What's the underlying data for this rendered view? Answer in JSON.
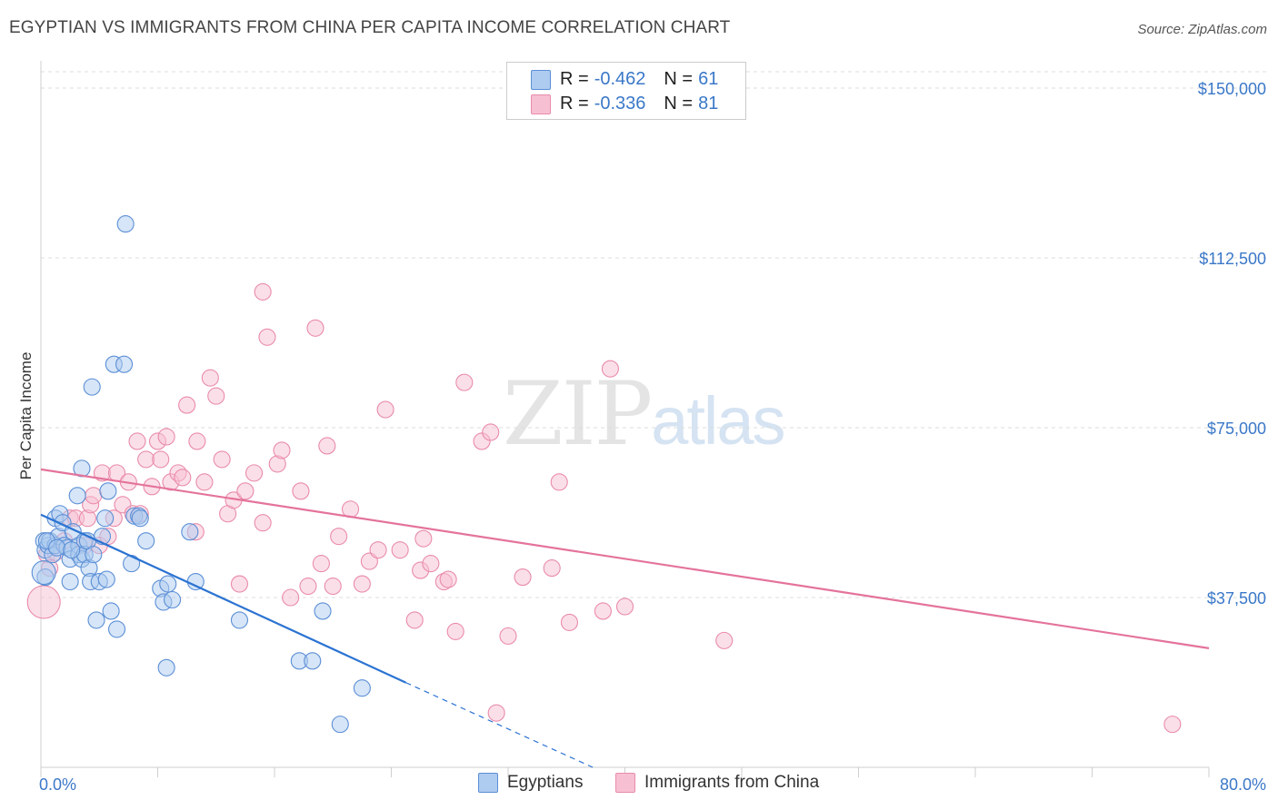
{
  "header": {
    "title": "EGYPTIAN VS IMMIGRANTS FROM CHINA PER CAPITA INCOME CORRELATION CHART",
    "source": "Source: ZipAtlas.com"
  },
  "watermark": {
    "zip": "ZIP",
    "atlas": "atlas"
  },
  "legend": {
    "rows": [
      {
        "r_label": "R =",
        "r_value": "-0.462",
        "n_label": "N =",
        "n_value": "61"
      },
      {
        "r_label": "R =",
        "r_value": "-0.336",
        "n_label": "N =",
        "n_value": "81"
      }
    ]
  },
  "bottom_legend": {
    "egyptians": "Egyptians",
    "china": "Immigrants from China"
  },
  "colors": {
    "blue_fill": "#aecbf0",
    "blue_stroke": "#5b8fd6",
    "blue_line": "#2b73d2",
    "pink_fill": "#f7c0d2",
    "pink_stroke": "#e98bab",
    "pink_line": "#e4739b",
    "tick": "#3b78c8"
  },
  "chart_data": {
    "type": "scatter",
    "title": "EGYPTIAN VS IMMIGRANTS FROM CHINA PER CAPITA INCOME CORRELATION CHART",
    "xlabel": "",
    "ylabel": "Per Capita Income",
    "xlim": [
      0,
      80
    ],
    "ylim": [
      0,
      150000
    ],
    "x_tick_labels": [
      "0.0%",
      "80.0%"
    ],
    "y_ticks": [
      37500,
      75000,
      112500,
      150000
    ],
    "y_tick_labels": [
      "$37,500",
      "$75,000",
      "$112,500",
      "$150,000"
    ],
    "grid": true,
    "series": [
      {
        "name": "Egyptians",
        "R": -0.462,
        "N": 61,
        "trend": {
          "x0": 0,
          "y0": 55800,
          "x1": 25,
          "y1": 18700,
          "dashed_to_x": 37.8,
          "dashed_to_y": 0
        },
        "points": [
          [
            0.2,
            50000
          ],
          [
            0.3,
            48000
          ],
          [
            0.3,
            42000
          ],
          [
            0.5,
            49000
          ],
          [
            0.6,
            50000
          ],
          [
            0.8,
            47000
          ],
          [
            1.0,
            49000
          ],
          [
            1.0,
            55000
          ],
          [
            1.2,
            51000
          ],
          [
            1.3,
            56000
          ],
          [
            1.5,
            54000
          ],
          [
            1.6,
            49000
          ],
          [
            1.8,
            48500
          ],
          [
            2.0,
            46000
          ],
          [
            2.0,
            41000
          ],
          [
            2.2,
            52000
          ],
          [
            2.5,
            60000
          ],
          [
            2.6,
            49000
          ],
          [
            2.6,
            47000
          ],
          [
            2.8,
            66000
          ],
          [
            2.8,
            46000
          ],
          [
            3.0,
            50000
          ],
          [
            3.0,
            47000
          ],
          [
            3.2,
            50000
          ],
          [
            3.3,
            44000
          ],
          [
            3.4,
            41000
          ],
          [
            3.5,
            84000
          ],
          [
            3.6,
            47000
          ],
          [
            3.8,
            32500
          ],
          [
            4.0,
            41000
          ],
          [
            4.2,
            51000
          ],
          [
            4.4,
            55000
          ],
          [
            4.5,
            41500
          ],
          [
            4.6,
            61000
          ],
          [
            4.8,
            34500
          ],
          [
            5.0,
            89000
          ],
          [
            5.2,
            30500
          ],
          [
            5.7,
            89000
          ],
          [
            5.8,
            120000
          ],
          [
            6.2,
            45000
          ],
          [
            6.4,
            55500
          ],
          [
            6.7,
            55500
          ],
          [
            6.8,
            55000
          ],
          [
            7.2,
            50000
          ],
          [
            8.2,
            39500
          ],
          [
            8.4,
            36500
          ],
          [
            8.6,
            22000
          ],
          [
            8.7,
            40500
          ],
          [
            9.0,
            37000
          ],
          [
            10.2,
            52000
          ],
          [
            10.6,
            41000
          ],
          [
            13.6,
            32500
          ],
          [
            17.7,
            23500
          ],
          [
            18.6,
            23500
          ],
          [
            19.3,
            34500
          ],
          [
            20.5,
            9500
          ],
          [
            22.0,
            17500
          ],
          [
            0.4,
            50000
          ],
          [
            1.1,
            48500
          ],
          [
            2.1,
            48000
          ],
          [
            0.2,
            43000
          ]
        ]
      },
      {
        "name": "Immigrants from China",
        "R": -0.336,
        "N": 81,
        "trend": {
          "x0": 0,
          "y0": 65800,
          "x1": 80,
          "y1": 26300
        },
        "points": [
          [
            0.2,
            36500
          ],
          [
            0.4,
            47000
          ],
          [
            0.6,
            44000
          ],
          [
            1.0,
            47500
          ],
          [
            1.6,
            50000
          ],
          [
            2.0,
            55000
          ],
          [
            2.4,
            55000
          ],
          [
            3.0,
            49000
          ],
          [
            3.2,
            55000
          ],
          [
            3.4,
            58000
          ],
          [
            3.6,
            60000
          ],
          [
            4.0,
            49000
          ],
          [
            4.2,
            65000
          ],
          [
            4.6,
            51000
          ],
          [
            5.0,
            55000
          ],
          [
            5.2,
            65000
          ],
          [
            5.6,
            58000
          ],
          [
            6.0,
            63000
          ],
          [
            6.3,
            56000
          ],
          [
            6.6,
            72000
          ],
          [
            6.8,
            56000
          ],
          [
            7.2,
            68000
          ],
          [
            7.6,
            62000
          ],
          [
            8.0,
            72000
          ],
          [
            8.2,
            68000
          ],
          [
            8.6,
            73000
          ],
          [
            8.9,
            63000
          ],
          [
            9.4,
            65000
          ],
          [
            9.7,
            64000
          ],
          [
            10.0,
            80000
          ],
          [
            10.6,
            52000
          ],
          [
            10.7,
            72000
          ],
          [
            11.2,
            63000
          ],
          [
            11.6,
            86000
          ],
          [
            12.0,
            82000
          ],
          [
            12.4,
            68000
          ],
          [
            12.8,
            56000
          ],
          [
            13.2,
            59000
          ],
          [
            13.6,
            40500
          ],
          [
            14.0,
            61000
          ],
          [
            14.6,
            65000
          ],
          [
            15.2,
            54000
          ],
          [
            15.5,
            95000
          ],
          [
            15.2,
            105000
          ],
          [
            16.2,
            67000
          ],
          [
            16.5,
            70000
          ],
          [
            17.1,
            37500
          ],
          [
            17.8,
            61000
          ],
          [
            18.3,
            40000
          ],
          [
            18.8,
            97000
          ],
          [
            19.2,
            45000
          ],
          [
            19.6,
            71000
          ],
          [
            20.0,
            40000
          ],
          [
            20.4,
            51000
          ],
          [
            21.2,
            57000
          ],
          [
            22.0,
            40500
          ],
          [
            22.5,
            45500
          ],
          [
            23.1,
            48000
          ],
          [
            23.6,
            79000
          ],
          [
            24.6,
            48000
          ],
          [
            25.6,
            32500
          ],
          [
            26.0,
            43500
          ],
          [
            26.2,
            50500
          ],
          [
            26.7,
            45000
          ],
          [
            27.6,
            41000
          ],
          [
            27.9,
            41500
          ],
          [
            28.4,
            30000
          ],
          [
            29.0,
            85000
          ],
          [
            30.2,
            72000
          ],
          [
            30.8,
            74000
          ],
          [
            31.2,
            12000
          ],
          [
            32.0,
            29000
          ],
          [
            33.0,
            42000
          ],
          [
            35.0,
            44000
          ],
          [
            35.5,
            63000
          ],
          [
            36.2,
            32000
          ],
          [
            38.5,
            34500
          ],
          [
            40.0,
            35500
          ],
          [
            46.8,
            28000
          ],
          [
            77.5,
            9500
          ],
          [
            39.0,
            88000
          ]
        ]
      }
    ]
  }
}
